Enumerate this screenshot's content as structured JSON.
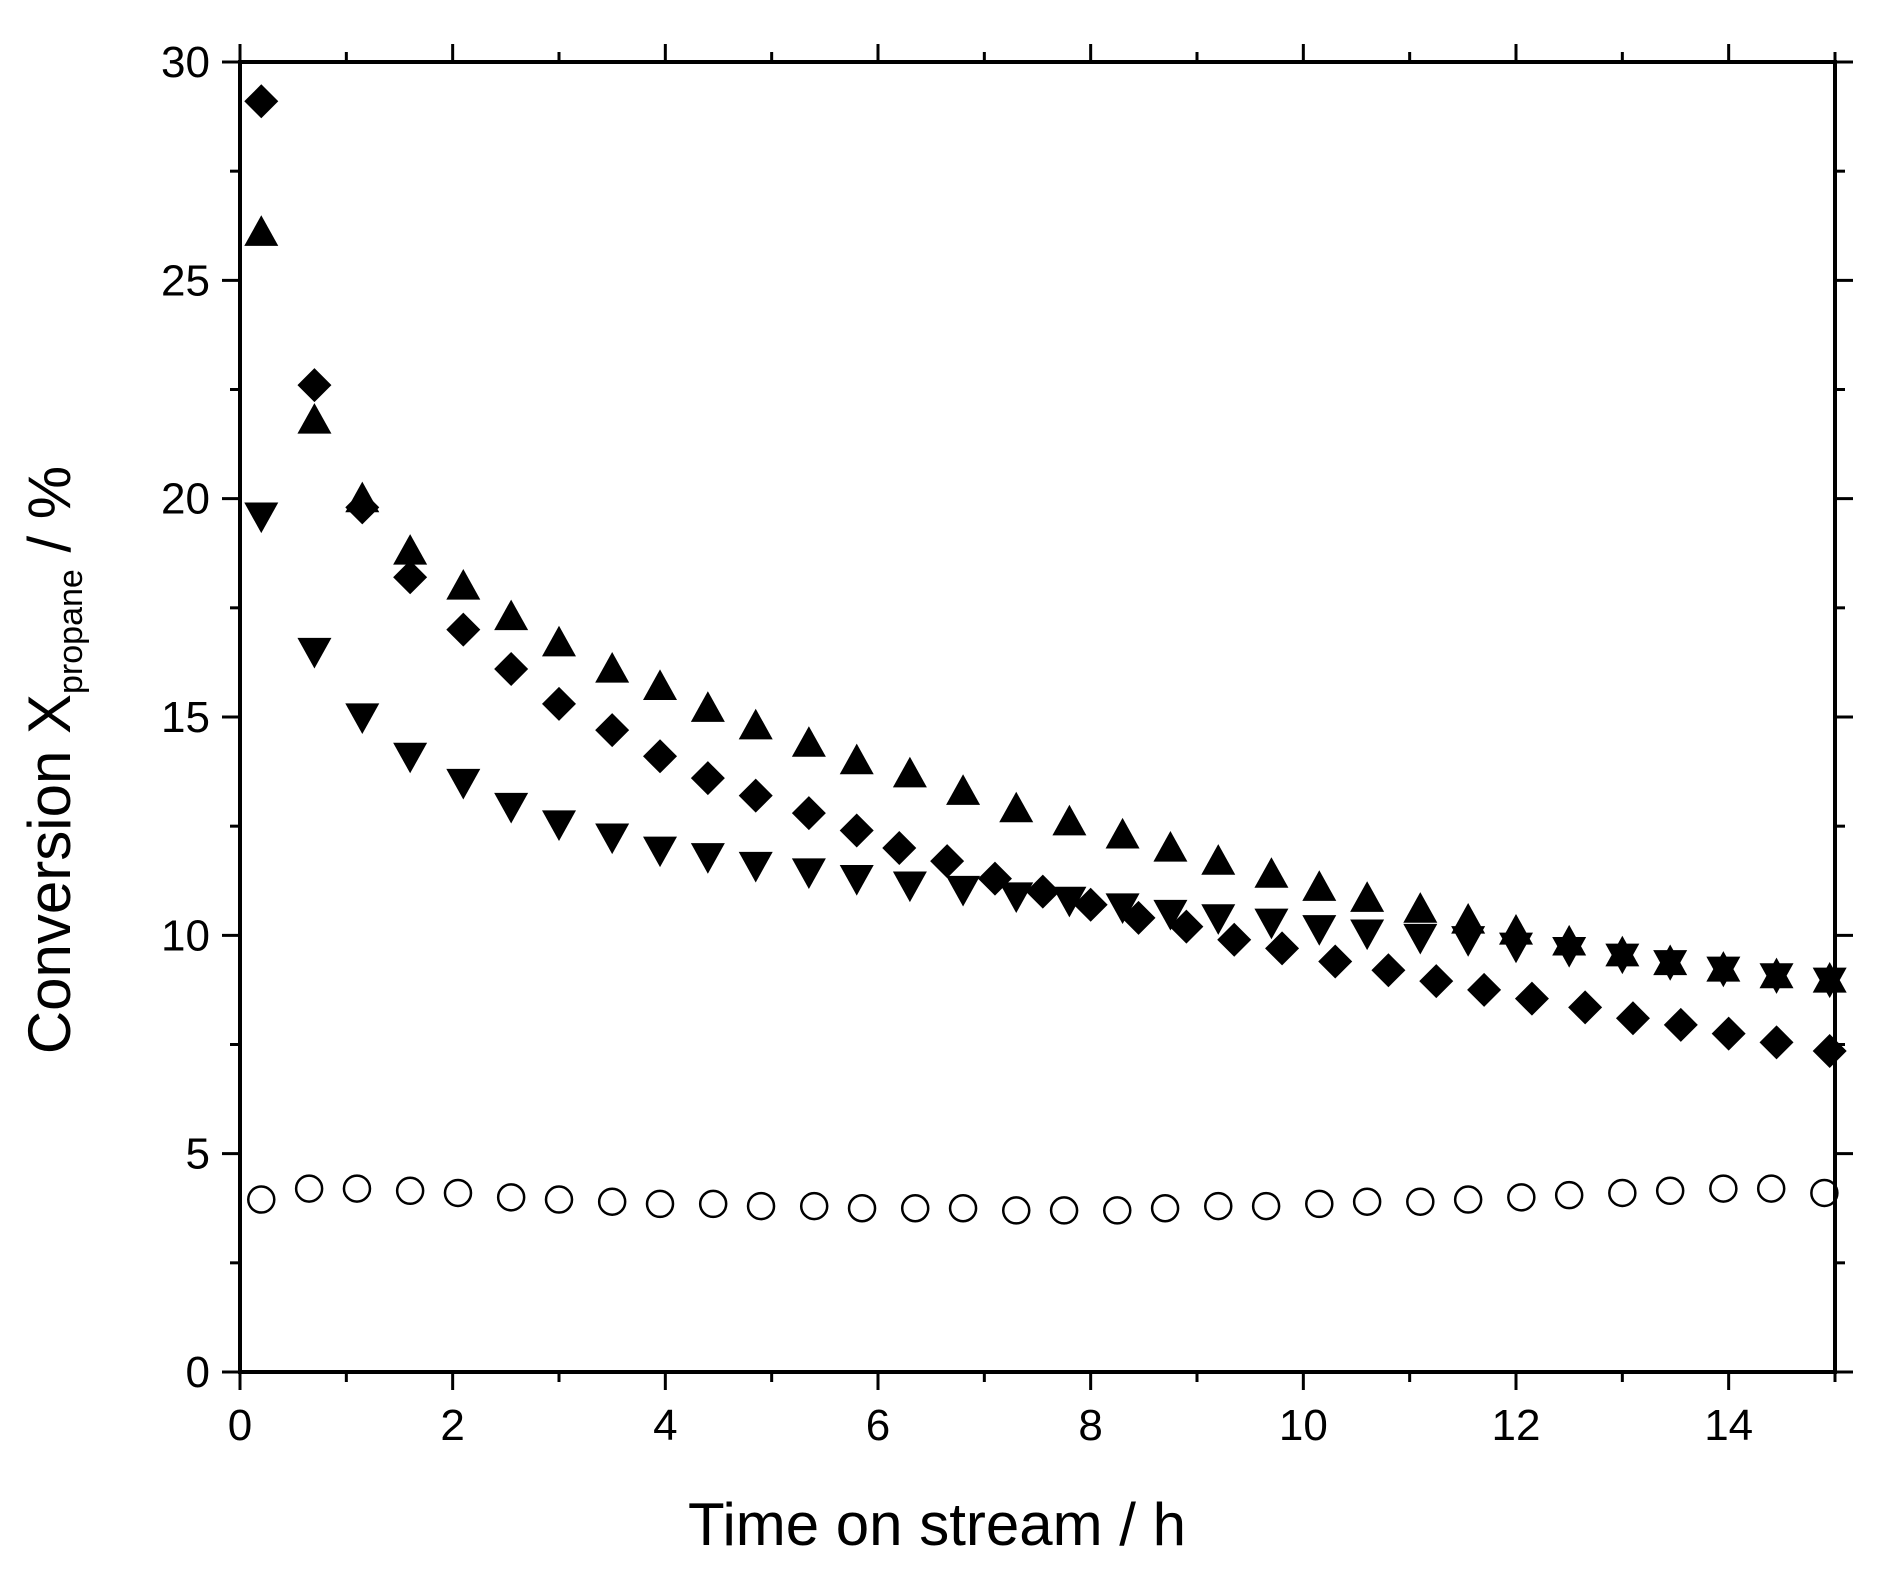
{
  "chart_data": {
    "type": "scatter",
    "title": "",
    "xlabel": "Time on stream / h",
    "ylabel": {
      "main": "Conversion X",
      "subscript": "propane",
      "unit": " / %"
    },
    "xlim": [
      0,
      15
    ],
    "ylim": [
      0,
      30
    ],
    "x_ticks": [
      0,
      2,
      4,
      6,
      8,
      10,
      12,
      14
    ],
    "y_ticks": [
      0,
      5,
      10,
      15,
      20,
      25,
      30
    ],
    "grid": false,
    "legend": "none",
    "series": [
      {
        "marker": "filled-diamond",
        "color": "#000000",
        "points": [
          [
            0.2,
            29.1
          ],
          [
            0.7,
            22.6
          ],
          [
            1.15,
            19.8
          ],
          [
            1.6,
            18.2
          ],
          [
            2.1,
            17.0
          ],
          [
            2.55,
            16.1
          ],
          [
            3.0,
            15.3
          ],
          [
            3.5,
            14.7
          ],
          [
            3.95,
            14.1
          ],
          [
            4.4,
            13.6
          ],
          [
            4.85,
            13.2
          ],
          [
            5.35,
            12.8
          ],
          [
            5.8,
            12.4
          ],
          [
            6.2,
            12.0
          ],
          [
            6.65,
            11.7
          ],
          [
            7.1,
            11.3
          ],
          [
            7.55,
            11.0
          ],
          [
            8.0,
            10.7
          ],
          [
            8.45,
            10.4
          ],
          [
            8.9,
            10.2
          ],
          [
            9.35,
            9.9
          ],
          [
            9.8,
            9.7
          ],
          [
            10.3,
            9.4
          ],
          [
            10.8,
            9.2
          ],
          [
            11.25,
            8.95
          ],
          [
            11.7,
            8.75
          ],
          [
            12.15,
            8.55
          ],
          [
            12.65,
            8.35
          ],
          [
            13.1,
            8.1
          ],
          [
            13.55,
            7.95
          ],
          [
            14.0,
            7.75
          ],
          [
            14.45,
            7.55
          ],
          [
            14.95,
            7.35
          ]
        ]
      },
      {
        "marker": "filled-triangle-up",
        "color": "#000000",
        "points": [
          [
            0.2,
            26.1
          ],
          [
            0.7,
            21.8
          ],
          [
            1.15,
            20.0
          ],
          [
            1.6,
            18.8
          ],
          [
            2.1,
            18.0
          ],
          [
            2.55,
            17.3
          ],
          [
            3.0,
            16.7
          ],
          [
            3.5,
            16.1
          ],
          [
            3.95,
            15.7
          ],
          [
            4.4,
            15.2
          ],
          [
            4.85,
            14.8
          ],
          [
            5.35,
            14.4
          ],
          [
            5.8,
            14.0
          ],
          [
            6.3,
            13.7
          ],
          [
            6.8,
            13.3
          ],
          [
            7.3,
            12.9
          ],
          [
            7.8,
            12.6
          ],
          [
            8.3,
            12.3
          ],
          [
            8.75,
            12.0
          ],
          [
            9.2,
            11.7
          ],
          [
            9.7,
            11.4
          ],
          [
            10.15,
            11.1
          ],
          [
            10.6,
            10.85
          ],
          [
            11.1,
            10.6
          ],
          [
            11.55,
            10.35
          ],
          [
            12.0,
            10.1
          ],
          [
            12.5,
            9.85
          ],
          [
            13.0,
            9.6
          ],
          [
            13.45,
            9.4
          ],
          [
            13.95,
            9.25
          ],
          [
            14.45,
            9.1
          ],
          [
            14.95,
            9.0
          ]
        ]
      },
      {
        "marker": "filled-triangle-down",
        "color": "#000000",
        "points": [
          [
            0.2,
            19.6
          ],
          [
            0.7,
            16.5
          ],
          [
            1.15,
            15.0
          ],
          [
            1.6,
            14.1
          ],
          [
            2.1,
            13.5
          ],
          [
            2.55,
            12.95
          ],
          [
            3.0,
            12.55
          ],
          [
            3.5,
            12.25
          ],
          [
            3.95,
            11.95
          ],
          [
            4.4,
            11.8
          ],
          [
            4.85,
            11.6
          ],
          [
            5.35,
            11.45
          ],
          [
            5.8,
            11.3
          ],
          [
            6.3,
            11.15
          ],
          [
            6.8,
            11.05
          ],
          [
            7.3,
            10.9
          ],
          [
            7.8,
            10.8
          ],
          [
            8.3,
            10.65
          ],
          [
            8.75,
            10.5
          ],
          [
            9.2,
            10.4
          ],
          [
            9.7,
            10.3
          ],
          [
            10.15,
            10.15
          ],
          [
            10.6,
            10.05
          ],
          [
            11.1,
            9.95
          ],
          [
            11.55,
            9.9
          ],
          [
            12.0,
            9.75
          ],
          [
            12.5,
            9.65
          ],
          [
            13.0,
            9.5
          ],
          [
            13.45,
            9.35
          ],
          [
            13.95,
            9.2
          ],
          [
            14.45,
            9.05
          ],
          [
            14.95,
            8.95
          ]
        ]
      },
      {
        "marker": "open-circle",
        "color": "#000000",
        "points": [
          [
            0.2,
            3.95
          ],
          [
            0.65,
            4.2
          ],
          [
            1.1,
            4.2
          ],
          [
            1.6,
            4.15
          ],
          [
            2.05,
            4.1
          ],
          [
            2.55,
            4.0
          ],
          [
            3.0,
            3.95
          ],
          [
            3.5,
            3.9
          ],
          [
            3.95,
            3.85
          ],
          [
            4.45,
            3.85
          ],
          [
            4.9,
            3.8
          ],
          [
            5.4,
            3.8
          ],
          [
            5.85,
            3.75
          ],
          [
            6.35,
            3.75
          ],
          [
            6.8,
            3.75
          ],
          [
            7.3,
            3.7
          ],
          [
            7.75,
            3.7
          ],
          [
            8.25,
            3.7
          ],
          [
            8.7,
            3.75
          ],
          [
            9.2,
            3.8
          ],
          [
            9.65,
            3.8
          ],
          [
            10.15,
            3.85
          ],
          [
            10.6,
            3.9
          ],
          [
            11.1,
            3.9
          ],
          [
            11.55,
            3.95
          ],
          [
            12.05,
            4.0
          ],
          [
            12.5,
            4.05
          ],
          [
            13.0,
            4.1
          ],
          [
            13.45,
            4.15
          ],
          [
            13.95,
            4.2
          ],
          [
            14.4,
            4.2
          ],
          [
            14.9,
            4.1
          ]
        ]
      }
    ]
  }
}
